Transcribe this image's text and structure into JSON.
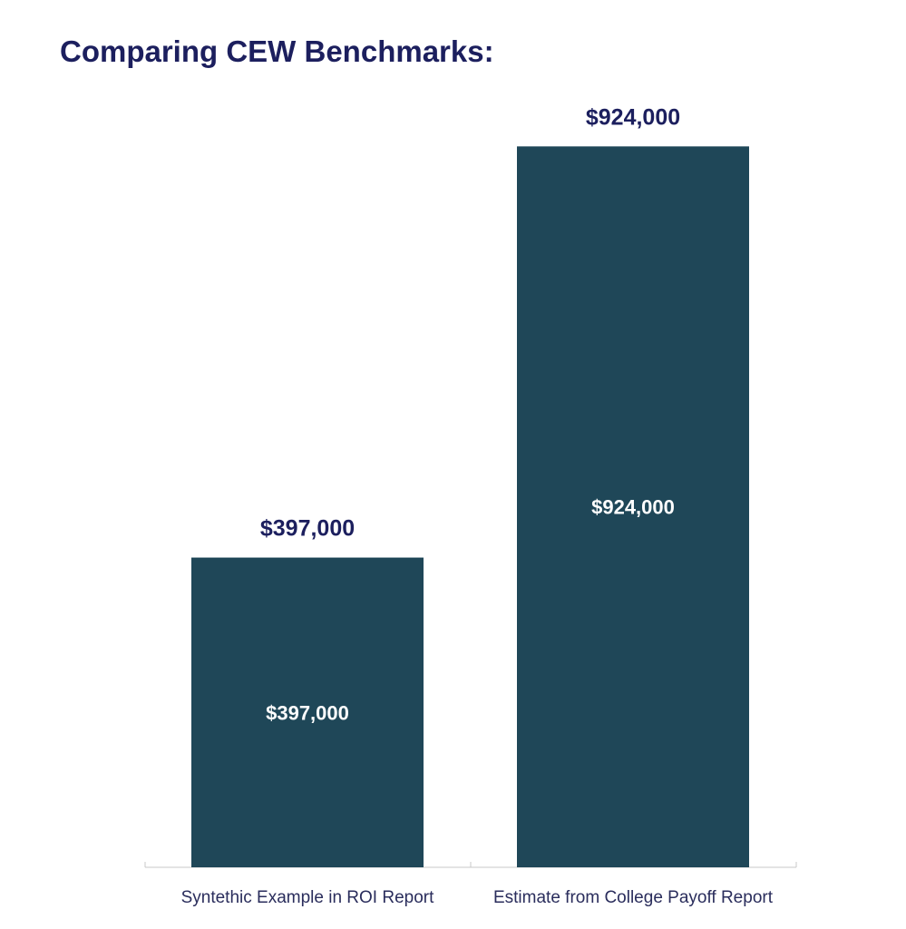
{
  "chart_data": {
    "type": "bar",
    "title": "Comparing CEW Benchmarks:",
    "categories": [
      "Syntethic Example in ROI Report",
      "Estimate from College Payoff Report"
    ],
    "values": [
      397000,
      924000
    ],
    "value_labels": [
      "$397,000",
      "$924,000"
    ],
    "xlabel": "",
    "ylabel": "",
    "ylim": [
      0,
      1000000
    ],
    "grid": false,
    "legend": "none"
  },
  "colors": {
    "bar": "#1f4758",
    "title": "#1c1f5e",
    "label_above": "#1c1f5e",
    "label_inside": "#ffffff",
    "axis": "#c8c8c8",
    "category_text": "#2a2d5c"
  }
}
